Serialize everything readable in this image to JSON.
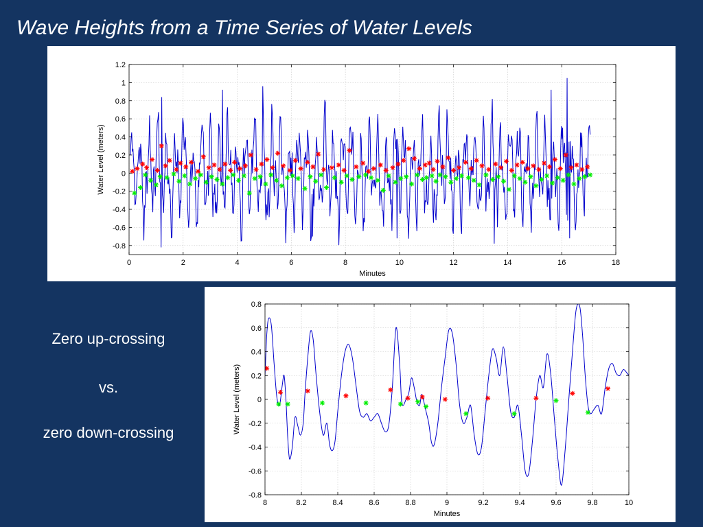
{
  "slide": {
    "title": "Wave Heights from a Time Series of Water Levels",
    "side_text": [
      "Zero up-crossing",
      "vs.",
      "zero down-crossing"
    ]
  },
  "colors": {
    "background": "#143461",
    "line": "#0000cc",
    "up_marker": "#ff0000",
    "down_marker": "#00ee00",
    "grid": "#c8c8c8"
  },
  "chart_data": [
    {
      "type": "line",
      "title": "",
      "xlabel": "Minutes",
      "ylabel": "Water Level (meters)",
      "xlim": [
        0,
        18
      ],
      "ylim": [
        -0.9,
        1.2
      ],
      "xticks": [
        0,
        2,
        4,
        6,
        8,
        10,
        12,
        14,
        16,
        18
      ],
      "yticks": [
        -0.8,
        -0.6,
        -0.4,
        -0.2,
        0,
        0.2,
        0.4,
        0.6,
        0.8,
        1,
        1.2
      ],
      "grid": true,
      "series": [
        {
          "style": "line",
          "x_start": 0.05,
          "x_end": 17.05,
          "count": 720,
          "peaks": [
            [
              1.22,
              0.84
            ],
            [
              3.45,
              0.92
            ],
            [
              4.95,
              0.96
            ],
            [
              15.6,
              0.92
            ],
            [
              16.2,
              1.05
            ]
          ],
          "troughs": [
            [
              1.18,
              -0.82
            ],
            [
              6.8,
              -0.7
            ],
            [
              9.9,
              -0.72
            ],
            [
              13.5,
              -0.78
            ],
            [
              16.3,
              -0.72
            ]
          ]
        },
        {
          "style": "markers-red",
          "x": [
            0.12,
            0.3,
            0.5,
            0.65,
            0.85,
            1.05,
            1.2,
            1.35,
            1.5,
            1.75,
            1.9,
            2.1,
            2.3,
            2.55,
            2.75,
            2.95,
            3.15,
            3.35,
            3.55,
            3.75,
            3.9,
            4.1,
            4.3,
            4.5,
            4.7,
            4.9,
            5.1,
            5.3,
            5.5,
            5.7,
            5.95,
            6.15,
            6.35,
            6.6,
            6.8,
            7.0,
            7.2,
            7.5,
            7.75,
            7.95,
            8.15,
            8.4,
            8.65,
            8.85,
            9.05,
            9.3,
            9.5,
            9.75,
            9.95,
            10.15,
            10.35,
            10.55,
            10.75,
            10.95,
            11.1,
            11.25,
            11.4,
            11.6,
            11.8,
            12.0,
            12.2,
            12.45,
            12.65,
            12.85,
            13.05,
            13.3,
            13.55,
            13.75,
            13.95,
            14.15,
            14.35,
            14.55,
            14.75,
            14.95,
            15.15,
            15.35,
            15.55,
            15.75,
            15.95,
            16.15,
            16.35,
            16.55,
            16.75,
            16.95
          ],
          "y": [
            0.02,
            0.05,
            0.1,
            0.06,
            0.15,
            0.03,
            0.3,
            0.08,
            0.14,
            0.04,
            0.11,
            0.07,
            0.12,
            0.02,
            0.18,
            0.06,
            0.09,
            0.04,
            0.1,
            0.03,
            0.12,
            0.05,
            0.08,
            0.2,
            0.04,
            0.1,
            0.15,
            0.06,
            0.22,
            0.08,
            0.03,
            0.14,
            0.05,
            0.12,
            0.07,
            0.21,
            0.04,
            0.06,
            0.09,
            0.03,
            0.25,
            0.07,
            0.11,
            0.02,
            0.05,
            0.09,
            0.03,
            0.06,
            0.1,
            0.14,
            0.27,
            0.16,
            0.05,
            0.09,
            0.11,
            0.04,
            0.13,
            0.07,
            0.17,
            0.03,
            0.06,
            0.12,
            0.05,
            0.14,
            0.08,
            0.04,
            0.1,
            0.06,
            0.13,
            0.03,
            0.09,
            0.12,
            0.05,
            0.08,
            0.04,
            0.11,
            0.07,
            0.15,
            0.05,
            0.2,
            0.06,
            0.09,
            0.04,
            0.07
          ]
        },
        {
          "style": "markers-green",
          "x": [
            0.2,
            0.42,
            0.6,
            0.8,
            1.0,
            1.15,
            1.4,
            1.65,
            1.85,
            2.05,
            2.25,
            2.45,
            2.65,
            2.85,
            3.05,
            3.25,
            3.45,
            3.65,
            3.85,
            4.05,
            4.25,
            4.45,
            4.65,
            4.85,
            5.05,
            5.25,
            5.45,
            5.65,
            5.85,
            6.05,
            6.25,
            6.5,
            6.7,
            6.9,
            7.1,
            7.3,
            7.6,
            7.85,
            8.05,
            8.25,
            8.5,
            8.75,
            8.95,
            9.2,
            9.4,
            9.6,
            9.85,
            10.05,
            10.25,
            10.45,
            10.65,
            10.85,
            11.0,
            11.2,
            11.35,
            11.5,
            11.7,
            11.9,
            12.1,
            12.3,
            12.55,
            12.75,
            12.95,
            13.2,
            13.45,
            13.65,
            13.85,
            14.05,
            14.25,
            14.45,
            14.65,
            14.85,
            15.05,
            15.25,
            15.45,
            15.65,
            15.85,
            16.05,
            16.25,
            16.45,
            16.65,
            16.85,
            17.05
          ],
          "y": [
            -0.22,
            -0.16,
            -0.02,
            -0.08,
            -0.13,
            -0.04,
            -0.05,
            -0.01,
            -0.09,
            -0.03,
            -0.12,
            -0.06,
            -0.02,
            -0.1,
            -0.04,
            -0.07,
            -0.12,
            -0.05,
            -0.02,
            -0.08,
            -0.03,
            -0.22,
            -0.06,
            -0.04,
            -0.12,
            -0.02,
            -0.08,
            -0.14,
            -0.05,
            -0.03,
            -0.06,
            -0.17,
            -0.04,
            -0.09,
            -0.02,
            -0.16,
            -0.05,
            -0.1,
            -0.03,
            -0.07,
            -0.04,
            -0.02,
            -0.05,
            -0.08,
            -0.19,
            -0.03,
            -0.1,
            -0.06,
            -0.04,
            -0.12,
            -0.02,
            -0.07,
            -0.05,
            -0.03,
            -0.09,
            -0.02,
            -0.04,
            -0.1,
            -0.06,
            -0.03,
            -0.05,
            -0.08,
            -0.13,
            -0.02,
            -0.07,
            -0.04,
            -0.09,
            -0.18,
            -0.03,
            -0.06,
            -0.1,
            -0.04,
            -0.14,
            -0.07,
            -0.03,
            -0.11,
            -0.05,
            -0.08,
            -0.02,
            -0.12,
            -0.06,
            -0.04,
            -0.02
          ]
        }
      ]
    },
    {
      "type": "line",
      "title": "",
      "xlabel": "Minutes",
      "ylabel": "Water Level (meters)",
      "xlim": [
        8,
        10
      ],
      "ylim": [
        -0.8,
        0.8
      ],
      "xticks": [
        8,
        8.2,
        8.4,
        8.6,
        8.8,
        9,
        9.2,
        9.4,
        9.6,
        9.8,
        10
      ],
      "yticks": [
        -0.8,
        -0.6,
        -0.4,
        -0.2,
        0,
        0.2,
        0.4,
        0.6,
        0.8
      ],
      "grid": true,
      "series": [
        {
          "style": "line",
          "x": [
            8.0,
            8.01,
            8.02,
            8.035,
            8.05,
            8.065,
            8.08,
            8.095,
            8.105,
            8.115,
            8.125,
            8.135,
            8.15,
            8.165,
            8.18,
            8.195,
            8.21,
            8.22,
            8.235,
            8.25,
            8.265,
            8.28,
            8.3,
            8.32,
            8.34,
            8.355,
            8.37,
            8.385,
            8.4,
            8.42,
            8.44,
            8.46,
            8.48,
            8.5,
            8.52,
            8.54,
            8.56,
            8.58,
            8.6,
            8.62,
            8.64,
            8.66,
            8.68,
            8.7,
            8.72,
            8.74,
            8.75,
            8.76,
            8.775,
            8.79,
            8.805,
            8.82,
            8.835,
            8.85,
            8.86,
            8.87,
            8.885,
            8.9,
            8.915,
            8.93,
            8.95,
            8.97,
            8.99,
            9.01,
            9.03,
            9.05,
            9.07,
            9.09,
            9.11,
            9.13,
            9.15,
            9.17,
            9.19,
            9.21,
            9.23,
            9.25,
            9.27,
            9.29,
            9.31,
            9.33,
            9.35,
            9.37,
            9.39,
            9.41,
            9.43,
            9.45,
            9.47,
            9.49,
            9.51,
            9.53,
            9.55,
            9.57,
            9.59,
            9.61,
            9.63,
            9.65,
            9.67,
            9.69,
            9.71,
            9.73,
            9.745,
            9.76,
            9.775,
            9.79,
            9.81,
            9.83,
            9.85,
            9.87,
            9.89,
            9.91,
            9.93,
            9.95,
            9.97,
            9.99,
            10.0
          ],
          "y": [
            0.2,
            0.55,
            0.68,
            0.62,
            0.3,
            0.02,
            -0.05,
            0.12,
            0.2,
            0.0,
            -0.32,
            -0.5,
            -0.4,
            -0.15,
            -0.22,
            -0.3,
            -0.2,
            0.05,
            0.35,
            0.57,
            0.5,
            0.22,
            -0.1,
            -0.3,
            -0.2,
            -0.38,
            -0.43,
            -0.35,
            -0.1,
            0.2,
            0.4,
            0.46,
            0.35,
            0.12,
            -0.1,
            -0.15,
            -0.12,
            -0.18,
            -0.15,
            -0.12,
            -0.2,
            -0.27,
            -0.22,
            0.1,
            0.6,
            0.3,
            0.0,
            -0.05,
            0.0,
            0.05,
            0.18,
            0.1,
            -0.02,
            -0.05,
            0.04,
            0.0,
            -0.1,
            -0.2,
            -0.36,
            -0.38,
            -0.2,
            0.1,
            0.35,
            0.58,
            0.55,
            0.3,
            -0.05,
            -0.2,
            -0.15,
            -0.05,
            -0.3,
            -0.46,
            -0.4,
            -0.1,
            0.2,
            0.42,
            0.35,
            0.2,
            0.44,
            0.2,
            -0.1,
            -0.15,
            -0.05,
            -0.3,
            -0.6,
            -0.62,
            -0.35,
            0.0,
            0.2,
            0.1,
            0.38,
            0.22,
            -0.15,
            -0.5,
            -0.72,
            -0.42,
            0.0,
            0.4,
            0.75,
            0.78,
            0.55,
            0.2,
            -0.05,
            -0.12,
            -0.08,
            -0.05,
            -0.12,
            0.1,
            0.26,
            0.3,
            0.22,
            0.2,
            0.25,
            0.22,
            0.2
          ]
        },
        {
          "style": "markers-red",
          "x": [
            8.01,
            8.085,
            8.235,
            8.445,
            8.69,
            8.785,
            8.865,
            8.99,
            9.225,
            9.49,
            9.69,
            9.885
          ],
          "y": [
            0.26,
            0.06,
            0.07,
            0.03,
            0.08,
            0.01,
            0.02,
            0.0,
            0.01,
            0.01,
            0.05,
            0.09
          ]
        },
        {
          "style": "markers-green",
          "x": [
            8.075,
            8.125,
            8.315,
            8.555,
            8.745,
            8.84,
            8.885,
            9.105,
            9.37,
            9.6,
            9.775
          ],
          "y": [
            -0.04,
            -0.04,
            -0.03,
            -0.03,
            -0.04,
            -0.02,
            -0.06,
            -0.12,
            -0.12,
            -0.01,
            -0.11
          ]
        }
      ]
    }
  ]
}
